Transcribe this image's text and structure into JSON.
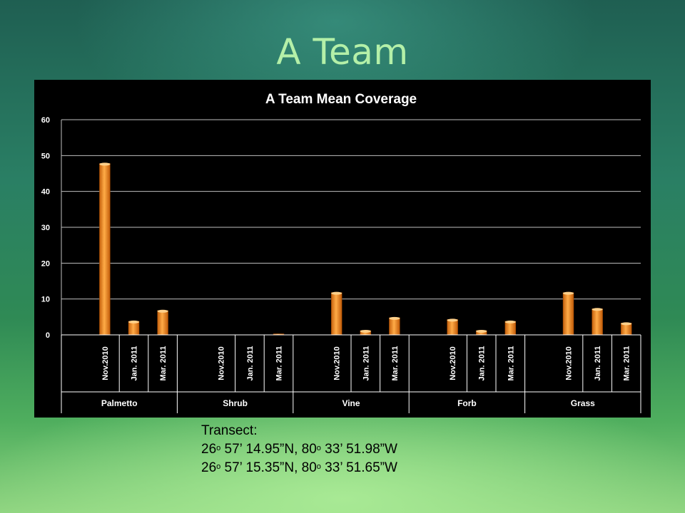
{
  "slide": {
    "title": "A Team"
  },
  "chart_data": {
    "type": "bar",
    "title": "A Team Mean Coverage",
    "xlabel": "",
    "ylabel": "",
    "ylim": [
      0,
      60
    ],
    "yticks": [
      0,
      10,
      20,
      30,
      40,
      50,
      60
    ],
    "grid": true,
    "legend": "none",
    "bar_color": "#f08a1c",
    "groups": [
      "Palmetto",
      "Shrub",
      "Vine",
      "Forb",
      "Grass"
    ],
    "subcategories": [
      "Nov.2010",
      "Jan. 2011",
      "Mar. 2011"
    ],
    "values": [
      [
        47.8,
        3.8,
        6.8
      ],
      [
        0,
        0,
        0.3
      ],
      [
        11.8,
        1.2,
        4.8
      ],
      [
        4.3,
        1.2,
        3.8
      ],
      [
        11.8,
        7.3,
        3.3
      ]
    ]
  },
  "transect": {
    "label": "Transect:",
    "coords": [
      {
        "lat_deg": "26",
        "lat_rest": " 57’ 14.95”N, ",
        "lon_deg": "80",
        "lon_rest": " 33’ 51.98”W",
        "sup": "o"
      },
      {
        "lat_deg": "26",
        "lat_rest": " 57’ 15.35”N, ",
        "lon_deg": "80",
        "lon_rest": " 33’ 51.65”W",
        "sup": "o"
      }
    ]
  }
}
